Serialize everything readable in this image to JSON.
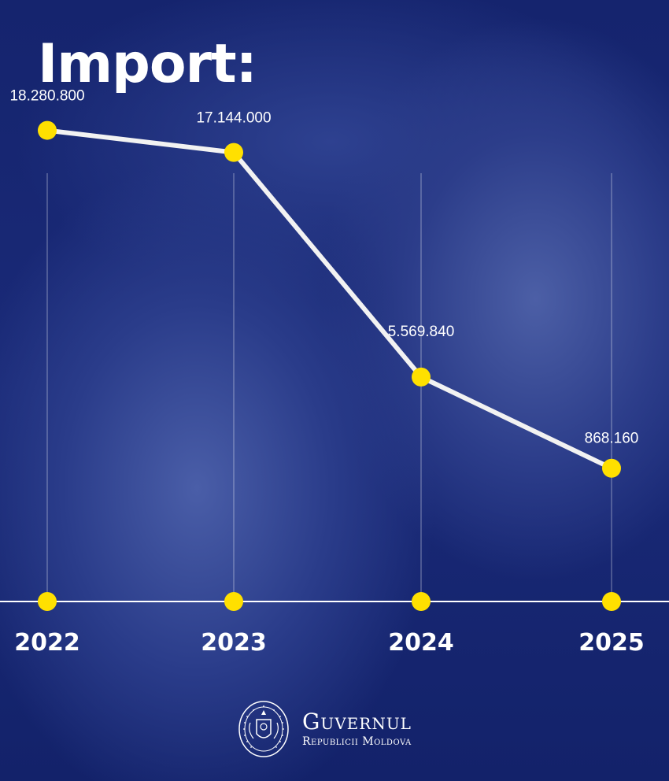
{
  "title": "Import:",
  "chart_data": {
    "type": "line",
    "categories": [
      "2022",
      "2023",
      "2024",
      "2025"
    ],
    "values": [
      18280800,
      17144000,
      5569840,
      868160
    ],
    "data_labels": [
      "18.280.800",
      "17.144.000",
      "5.569.840",
      "868.160"
    ],
    "ylim": [
      -6000000,
      25000000
    ],
    "grid": "vertical",
    "legend": "none"
  },
  "colors": {
    "background": "#14226b",
    "line": "#f2f2f2",
    "marker": "#ffe000",
    "text": "#ffffff"
  },
  "footer": {
    "brand_main": "Guvernul",
    "brand_sub": "Republicii Moldova",
    "seal_icon": "moldova-coat-of-arms-icon"
  }
}
